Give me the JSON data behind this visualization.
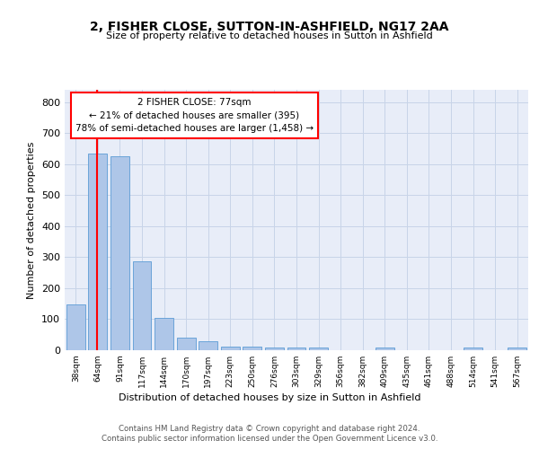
{
  "title": "2, FISHER CLOSE, SUTTON-IN-ASHFIELD, NG17 2AA",
  "subtitle": "Size of property relative to detached houses in Sutton in Ashfield",
  "xlabel": "Distribution of detached houses by size in Sutton in Ashfield",
  "ylabel": "Number of detached properties",
  "footer_line1": "Contains HM Land Registry data © Crown copyright and database right 2024.",
  "footer_line2": "Contains public sector information licensed under the Open Government Licence v3.0.",
  "categories": [
    "38sqm",
    "64sqm",
    "91sqm",
    "117sqm",
    "144sqm",
    "170sqm",
    "197sqm",
    "223sqm",
    "250sqm",
    "276sqm",
    "303sqm",
    "329sqm",
    "356sqm",
    "382sqm",
    "409sqm",
    "435sqm",
    "461sqm",
    "488sqm",
    "514sqm",
    "541sqm",
    "567sqm"
  ],
  "values": [
    148,
    634,
    626,
    287,
    103,
    41,
    28,
    11,
    11,
    10,
    10,
    10,
    0,
    0,
    8,
    0,
    0,
    0,
    8,
    0,
    8
  ],
  "bar_color": "#aec6e8",
  "bar_edge_color": "#5b9bd5",
  "grid_color": "#c8d4e8",
  "background_color": "#e8edf8",
  "marker_color": "red",
  "annotation_text": "2 FISHER CLOSE: 77sqm\n← 21% of detached houses are smaller (395)\n78% of semi-detached houses are larger (1,458) →",
  "ylim": [
    0,
    840
  ],
  "yticks": [
    0,
    100,
    200,
    300,
    400,
    500,
    600,
    700,
    800
  ]
}
